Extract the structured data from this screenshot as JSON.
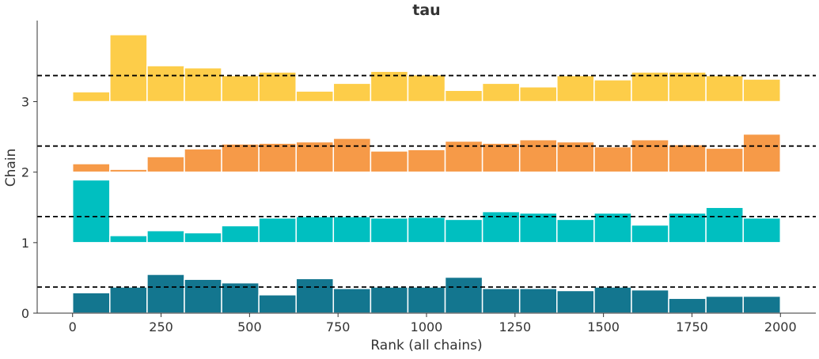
{
  "chart_data": {
    "type": "bar",
    "title": "tau",
    "xlabel": "Rank (all chains)",
    "ylabel": "Chain",
    "xlim": [
      -100,
      2100
    ],
    "ylim": [
      0,
      4.15
    ],
    "xticks": [
      0,
      250,
      500,
      750,
      1000,
      1250,
      1500,
      1750,
      2000
    ],
    "yticks": [
      0,
      1,
      2,
      3
    ],
    "grid": false,
    "bin_edges": [
      0,
      105.26,
      210.53,
      315.79,
      421.05,
      526.32,
      631.58,
      736.84,
      842.11,
      947.37,
      1052.63,
      1157.89,
      1263.16,
      1368.42,
      1473.68,
      1578.95,
      1684.21,
      1789.47,
      1894.74,
      2000
    ],
    "reference_line_offset": 0.37,
    "series": [
      {
        "name": "0",
        "baseline": 0,
        "color": "#13768f",
        "values": [
          0.29,
          0.37,
          0.55,
          0.48,
          0.43,
          0.26,
          0.49,
          0.35,
          0.37,
          0.37,
          0.51,
          0.35,
          0.35,
          0.32,
          0.37,
          0.33,
          0.21,
          0.24,
          0.24
        ]
      },
      {
        "name": "1",
        "baseline": 1,
        "color": "#00bfc0",
        "values": [
          0.89,
          0.1,
          0.17,
          0.14,
          0.24,
          0.35,
          0.37,
          0.37,
          0.35,
          0.36,
          0.33,
          0.44,
          0.42,
          0.33,
          0.42,
          0.25,
          0.42,
          0.5,
          0.35
        ]
      },
      {
        "name": "2",
        "baseline": 2,
        "color": "#f69a48",
        "values": [
          0.12,
          0.04,
          0.22,
          0.33,
          0.4,
          0.41,
          0.43,
          0.48,
          0.3,
          0.32,
          0.44,
          0.41,
          0.46,
          0.43,
          0.36,
          0.46,
          0.39,
          0.34,
          0.54
        ]
      },
      {
        "name": "3",
        "baseline": 3,
        "color": "#fdcd49",
        "values": [
          0.14,
          0.95,
          0.51,
          0.48,
          0.37,
          0.42,
          0.15,
          0.26,
          0.43,
          0.38,
          0.16,
          0.26,
          0.21,
          0.37,
          0.31,
          0.42,
          0.42,
          0.37,
          0.32
        ]
      }
    ]
  }
}
